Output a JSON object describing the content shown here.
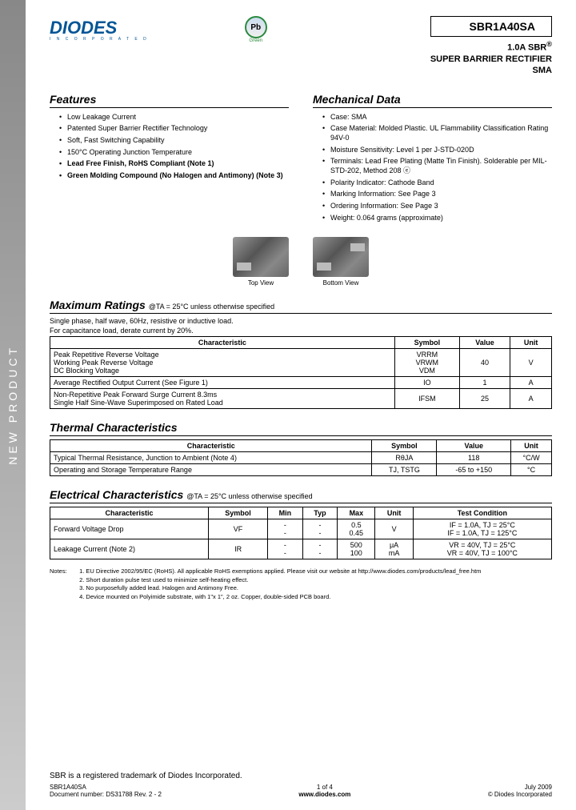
{
  "side_label": "NEW PRODUCT",
  "logo": {
    "brand": "DIODES",
    "sub": "I N C O R P O R A T E D"
  },
  "pb_badge": {
    "text": "Pb",
    "sub": "Green"
  },
  "part_number": "SBR1A40SA",
  "subtitle_l1": "1.0A SBR",
  "subtitle_sup": "®",
  "subtitle_l2": "SUPER BARRIER RECTIFIER",
  "subtitle_l3": "SMA",
  "features": {
    "title": "Features",
    "items": [
      {
        "text": "Low Leakage Current",
        "bold": false
      },
      {
        "text": "Patented Super Barrier Rectifier Technology",
        "bold": false
      },
      {
        "text": "Soft, Fast Switching Capability",
        "bold": false
      },
      {
        "text": "150°C Operating Junction Temperature",
        "bold": false
      },
      {
        "text": "Lead Free Finish, RoHS Compliant (Note 1)",
        "bold": true
      },
      {
        "text": "Green Molding Compound (No Halogen and Antimony) (Note 3)",
        "bold": true
      }
    ]
  },
  "mechanical": {
    "title": "Mechanical Data",
    "items": [
      "Case: SMA",
      "Case Material: Molded Plastic. UL Flammability Classification Rating 94V-0",
      "Moisture Sensitivity: Level 1 per J-STD-020D",
      "Terminals: Lead Free Plating (Matte Tin Finish). Solderable per MIL-STD-202, Method 208 ⓔ",
      "Polarity Indicator: Cathode Band",
      "Marking Information: See Page 3",
      "Ordering Information: See Page 3",
      "Weight: 0.064 grams (approximate)"
    ]
  },
  "images": {
    "top": "Top View",
    "bottom": "Bottom View"
  },
  "max_ratings": {
    "title": "Maximum Ratings",
    "cond": "@TA = 25°C unless otherwise specified",
    "note1": "Single phase, half wave, 60Hz, resistive or inductive load.",
    "note2": "For capacitance load, derate current by 20%.",
    "headers": [
      "Characteristic",
      "Symbol",
      "Value",
      "Unit"
    ],
    "rows": [
      [
        "Peak Repetitive Reverse Voltage\nWorking Peak Reverse Voltage\nDC Blocking Voltage",
        "VRRM\nVRWM\nVDM",
        "40",
        "V"
      ],
      [
        "Average Rectified Output Current   (See Figure 1)",
        "IO",
        "1",
        "A"
      ],
      [
        "Non-Repetitive Peak Forward Surge Current 8.3ms\nSingle Half Sine-Wave Superimposed on Rated Load",
        "IFSM",
        "25",
        "A"
      ]
    ]
  },
  "thermal": {
    "title": "Thermal Characteristics",
    "headers": [
      "Characteristic",
      "Symbol",
      "Value",
      "Unit"
    ],
    "rows": [
      [
        "Typical Thermal Resistance, Junction to Ambient (Note 4)",
        "RθJA",
        "118",
        "°C/W"
      ],
      [
        "Operating and Storage Temperature Range",
        "TJ, TSTG",
        "-65 to +150",
        "°C"
      ]
    ]
  },
  "electrical": {
    "title": "Electrical Characteristics",
    "cond": "@TA = 25°C unless otherwise specified",
    "headers": [
      "Characteristic",
      "Symbol",
      "Min",
      "Typ",
      "Max",
      "Unit",
      "Test Condition"
    ],
    "rows": [
      [
        "Forward Voltage Drop",
        "VF",
        "-\n-",
        "-\n-",
        "0.5\n0.45",
        "V",
        "IF = 1.0A, TJ = 25°C\nIF = 1.0A, TJ = 125°C"
      ],
      [
        "Leakage Current (Note 2)",
        "IR",
        "-\n-",
        "-\n-",
        "500\n100",
        "μA\nmA",
        "VR = 40V, TJ = 25°C\nVR = 40V, TJ = 100°C"
      ]
    ]
  },
  "notes": {
    "label": "Notes:",
    "items": [
      "1. EU Directive 2002/95/EC (RoHS). All applicable RoHS exemptions applied. Please visit our website at http://www.diodes.com/products/lead_free.htm",
      "2. Short duration pulse test used to minimize self-heating effect.",
      "3. No purposefully added lead. Halogen and Antimony Free.",
      "4. Device mounted on Polyimide substrate, with 1\"x 1\", 2 oz. Copper, double-sided PCB board."
    ]
  },
  "footer": {
    "trademark": "SBR is a registered trademark of Diodes Incorporated.",
    "part": "SBR1A40SA",
    "doc": "Document number: DS31788 Rev. 2 - 2",
    "page": "1 of 4",
    "url": "www.diodes.com",
    "date": "July 2009",
    "copyright": "© Diodes Incorporated"
  },
  "colors": {
    "brand": "#005596",
    "border": "#000000",
    "green": "#2a8a3e"
  }
}
